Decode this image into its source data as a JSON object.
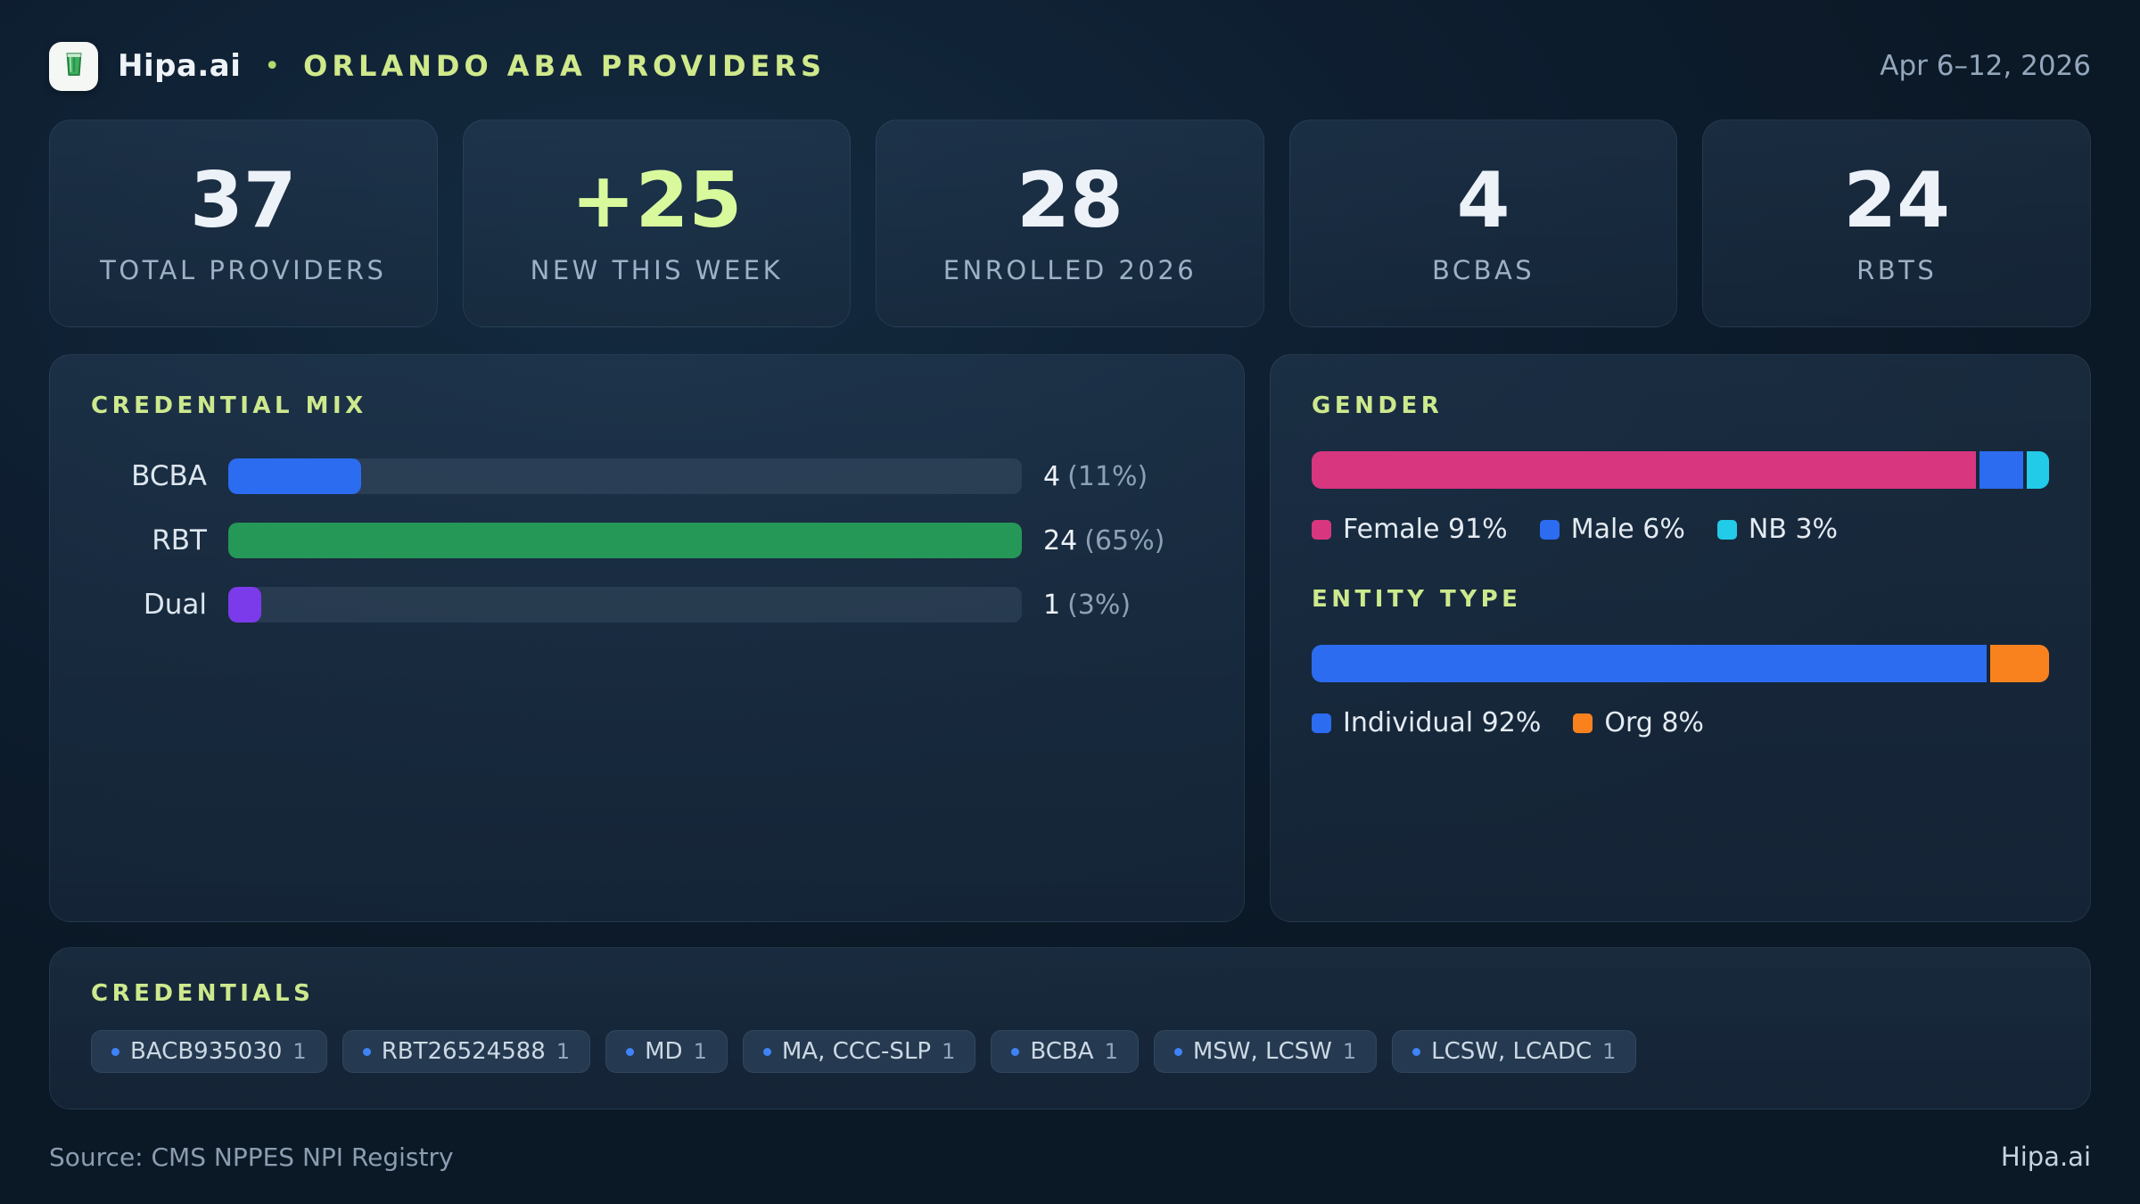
{
  "header": {
    "brand": "Hipa.ai",
    "dot": "•",
    "title": "ORLANDO ABA PROVIDERS",
    "date_range": "Apr 6–12, 2026"
  },
  "stats": [
    {
      "value": "37",
      "label": "TOTAL PROVIDERS"
    },
    {
      "value": "+25",
      "label": "NEW THIS WEEK"
    },
    {
      "value": "28",
      "label": "ENROLLED 2026"
    },
    {
      "value": "4",
      "label": "BCBAS"
    },
    {
      "value": "24",
      "label": "RBTS"
    }
  ],
  "credential_mix": {
    "title": "CREDENTIAL MIX",
    "rows": [
      {
        "label": "BCBA",
        "value_text": "4",
        "pct_text": "(11%)",
        "color": "#2b6cf0",
        "fill_pct": 16.7
      },
      {
        "label": "RBT",
        "value_text": "24",
        "pct_text": "(65%)",
        "color": "#259757",
        "fill_pct": 100
      },
      {
        "label": "Dual",
        "value_text": "1",
        "pct_text": "(3%)",
        "color": "#7b3bea",
        "fill_pct": 4.2
      }
    ]
  },
  "gender": {
    "title": "GENDER",
    "segments": [
      {
        "display": "Female 91%",
        "pct": 91,
        "color": "#d93680"
      },
      {
        "display": "Male 6%",
        "pct": 6,
        "color": "#2b6cf0"
      },
      {
        "display": "NB 3%",
        "pct": 3,
        "color": "#22cbe8"
      }
    ]
  },
  "entity_type": {
    "title": "ENTITY TYPE",
    "segments": [
      {
        "display": "Individual 92%",
        "pct": 92,
        "color": "#2b6cf0"
      },
      {
        "display": "Org 8%",
        "pct": 8,
        "color": "#f9821f"
      }
    ]
  },
  "credentials": {
    "title": "CREDENTIALS",
    "chips": [
      {
        "label": "BACB935030",
        "count": "1"
      },
      {
        "label": "RBT26524588",
        "count": "1"
      },
      {
        "label": "MD",
        "count": "1"
      },
      {
        "label": "MA, CCC-SLP",
        "count": "1"
      },
      {
        "label": "BCBA",
        "count": "1"
      },
      {
        "label": "MSW, LCSW",
        "count": "1"
      },
      {
        "label": "LCSW, LCADC",
        "count": "1"
      }
    ]
  },
  "footer": {
    "source": "Source: CMS NPPES NPI Registry",
    "brand": "Hipa.ai"
  },
  "chart_data": [
    {
      "type": "bar",
      "title": "CREDENTIAL MIX",
      "orientation": "horizontal",
      "categories": [
        "BCBA",
        "RBT",
        "Dual"
      ],
      "values": [
        4,
        24,
        1
      ],
      "percent_of_total": [
        11,
        65,
        3
      ],
      "xlim": [
        0,
        24
      ],
      "colors": [
        "#2b6cf0",
        "#259757",
        "#7b3bea"
      ]
    },
    {
      "type": "bar",
      "title": "GENDER",
      "stacked": true,
      "categories": [
        "Female",
        "Male",
        "NB"
      ],
      "values": [
        91,
        6,
        3
      ],
      "unit": "%",
      "colors": [
        "#d93680",
        "#2b6cf0",
        "#22cbe8"
      ],
      "legend_position": "bottom"
    },
    {
      "type": "bar",
      "title": "ENTITY TYPE",
      "stacked": true,
      "categories": [
        "Individual",
        "Org"
      ],
      "values": [
        92,
        8
      ],
      "unit": "%",
      "colors": [
        "#2b6cf0",
        "#f9821f"
      ],
      "legend_position": "bottom"
    }
  ]
}
